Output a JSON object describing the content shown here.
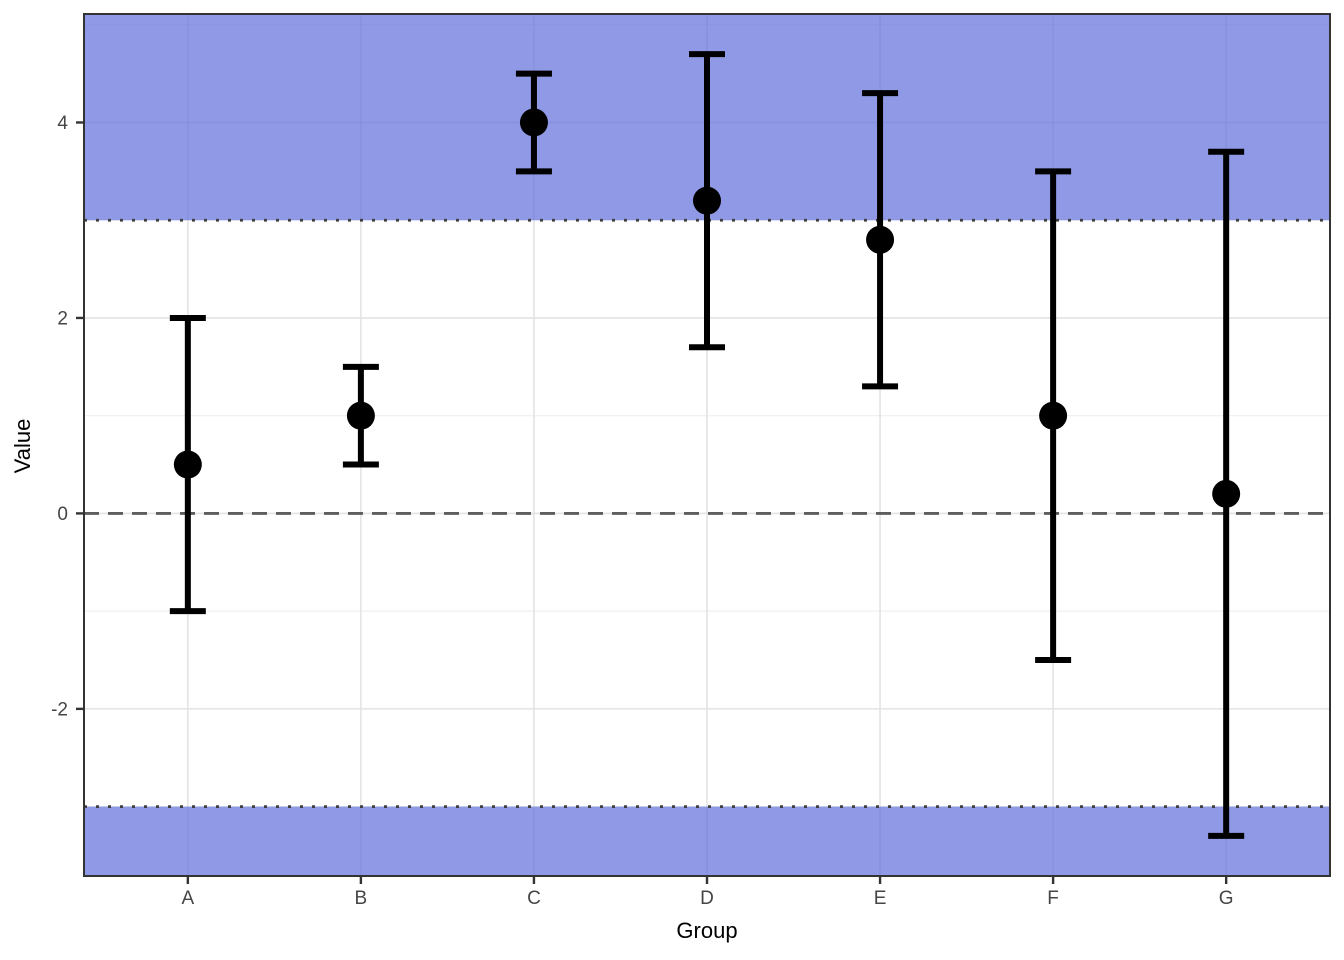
{
  "chart_data": {
    "type": "scatter",
    "subtype": "pointrange-errorbar",
    "title": "",
    "xlabel": "Group",
    "ylabel": "Value",
    "categories": [
      "A",
      "B",
      "C",
      "D",
      "E",
      "F",
      "G"
    ],
    "series": [
      {
        "name": "estimate",
        "values": [
          0.5,
          1.0,
          4.0,
          3.2,
          2.8,
          1.0,
          0.2
        ]
      },
      {
        "name": "lower",
        "values": [
          -1.0,
          0.5,
          3.5,
          1.7,
          1.3,
          -1.5,
          -3.3
        ]
      },
      {
        "name": "upper",
        "values": [
          2.0,
          1.5,
          4.5,
          4.7,
          4.3,
          3.5,
          3.7
        ]
      }
    ],
    "ylim": [
      -3.71,
      5.11
    ],
    "y_ticks": [
      -2,
      0,
      2,
      4
    ],
    "y_minor_gridlines": [
      -3,
      -1,
      1,
      3,
      5
    ],
    "reference_lines": [
      {
        "y": 0,
        "style": "dashed",
        "color": "#5E5E5E"
      },
      {
        "y": 3,
        "style": "dotted",
        "color": "#404040"
      },
      {
        "y": -3,
        "style": "dotted",
        "color": "#404040"
      }
    ],
    "shaded_bands": [
      {
        "ymin": 3,
        "ymax": 5.11,
        "fill": "#5F6EDC",
        "opacity": 0.7
      },
      {
        "ymin": -3.71,
        "ymax": -3,
        "fill": "#5F6EDC",
        "opacity": 0.7
      }
    ],
    "grid": true,
    "legend": false,
    "colors": {
      "point": "#000000",
      "errorbar": "#000000",
      "band_apparent": "#8F9AE4",
      "grid_major": "#E3E3E3",
      "grid_minor": "#EFEFEF",
      "panel_border": "#333333",
      "tick_mark": "#333333",
      "tick_label": "#454545",
      "axis_title": "#000000",
      "background": "#FFFFFF"
    }
  }
}
